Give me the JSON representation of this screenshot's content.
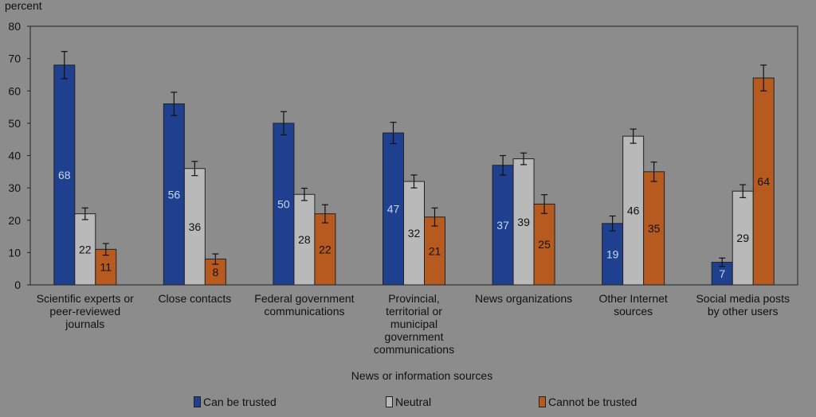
{
  "chart_data": {
    "type": "bar",
    "ylabel": "percent",
    "xlabel": "News or information sources",
    "ylim": [
      0,
      80
    ],
    "yticks": [
      0,
      10,
      20,
      30,
      40,
      50,
      60,
      70,
      80
    ],
    "categories": [
      [
        "Scientific experts or",
        "peer-reviewed",
        "journals"
      ],
      [
        "Close contacts"
      ],
      [
        "Federal government",
        "communications"
      ],
      [
        "Provincial,",
        "territorial or",
        "municipal",
        "government",
        "communications"
      ],
      [
        "News organizations"
      ],
      [
        "Other Internet",
        "sources"
      ],
      [
        "Social media posts",
        "by other users"
      ]
    ],
    "series": [
      {
        "name": "Can be trusted",
        "color": "#1f3f8f",
        "label_color": "#c9d6f0",
        "values": [
          68,
          56,
          50,
          47,
          37,
          19,
          7
        ],
        "error": [
          4.2,
          3.6,
          3.6,
          3.3,
          3.0,
          2.3,
          1.3
        ]
      },
      {
        "name": "Neutral",
        "color": "#b9b9b9",
        "label_color": "#111111",
        "values": [
          22,
          36,
          28,
          32,
          39,
          46,
          29
        ],
        "error": [
          1.8,
          2.2,
          1.9,
          2.0,
          1.8,
          2.2,
          2.0
        ]
      },
      {
        "name": "Cannot be trusted",
        "color": "#b65a1f",
        "label_color": "#111111",
        "values": [
          11,
          8,
          22,
          21,
          25,
          35,
          64
        ],
        "error": [
          1.8,
          1.6,
          2.8,
          2.8,
          2.9,
          3.0,
          4.0
        ]
      }
    ],
    "legend_position": "bottom"
  }
}
